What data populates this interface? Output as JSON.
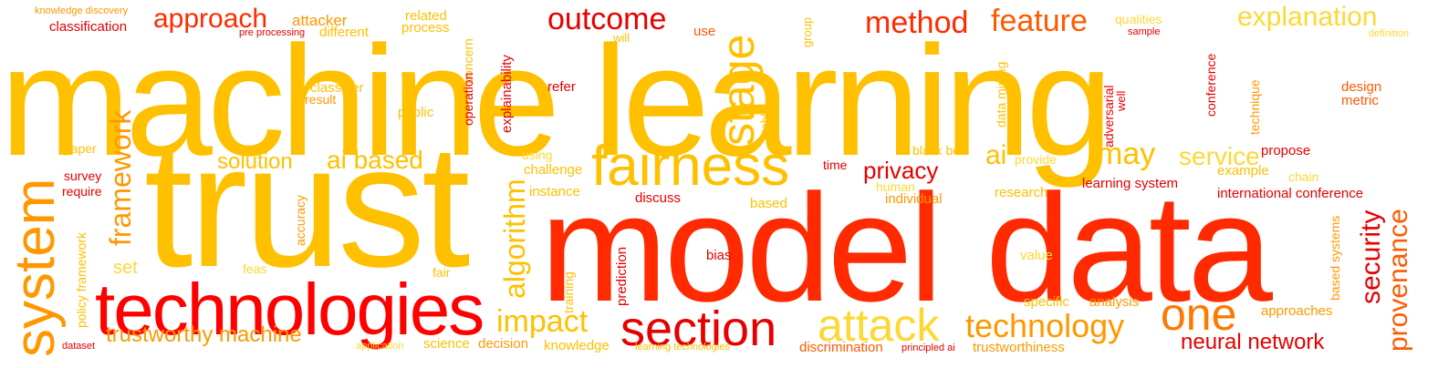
{
  "words": {
    "machine_learning": "machine learning",
    "trust": "trust",
    "model": "model",
    "data": "data",
    "technologies": "technologies",
    "system": "system",
    "fairness": "fairness",
    "section": "section",
    "attack": "attack",
    "one": "one",
    "technology": "technology",
    "impact": "impact",
    "approach": "approach",
    "outcome": "outcome",
    "method": "method",
    "feature": "feature",
    "explanation": "explanation",
    "stage": "stage",
    "framework": "framework",
    "algorithm": "algorithm",
    "security": "security",
    "provenance": "provenance",
    "privacy": "privacy",
    "may": "may",
    "service": "service",
    "ai": "ai",
    "ai_based": "ai based",
    "solution": "solution",
    "trustworthy_machine": "trustworthy machine",
    "neural_network": "neural network",
    "set": "set",
    "knowledge_discovery": "knowledge discovery",
    "classification": "classification",
    "attacker": "attacker",
    "related": "related",
    "process": "process",
    "pre_processing": "pre processing",
    "different": "different",
    "will": "will",
    "use": "use",
    "group": "group",
    "qualities": "qualities",
    "sample": "sample",
    "definition": "definition",
    "literature": "literature",
    "classifier": "classifier",
    "result": "result",
    "public": "public",
    "concern": "concern",
    "operation": "operation",
    "explainability": "explainability",
    "refer": "refer",
    "table": "table",
    "data_mining": "data mining",
    "adversarial": "adversarial",
    "well": "well",
    "conference": "conference",
    "technique": "technique",
    "design": "design",
    "metric": "metric",
    "paper": "paper",
    "survey": "survey",
    "require": "require",
    "using": "using",
    "challenge": "challenge",
    "instance": "instance",
    "discuss": "discuss",
    "time": "time",
    "black_box": "black box",
    "provide": "provide",
    "propose": "propose",
    "example": "example",
    "chain": "chain",
    "human": "human",
    "individual": "individual",
    "research": "research",
    "learning_system": "learning system",
    "international_conference": "international conference",
    "based": "based",
    "accuracy": "accuracy",
    "policy_framework": "policy framework",
    "feas": "feas",
    "fair": "fair",
    "bias": "bias",
    "prediction": "prediction",
    "training": "training",
    "value": "value",
    "based_systems": "based systems",
    "specific": "specific",
    "analysis": "analysis",
    "approaches": "approaches",
    "dataset": "dataset",
    "application": "application",
    "science": "science",
    "decision": "decision",
    "knowledge": "knowledge",
    "learning_technologies": "learning technologies",
    "discrimination": "discrimination",
    "principled_ai": "principled ai",
    "trustworthiness": "trustworthiness"
  }
}
